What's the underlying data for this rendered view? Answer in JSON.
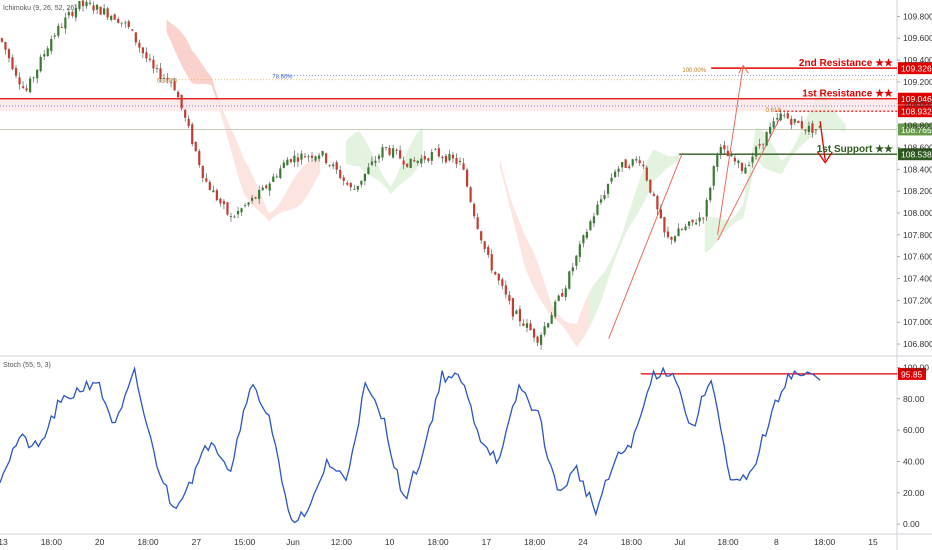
{
  "main_panel": {
    "indicator_label": "Ichimoku (9, 26, 52, 26)",
    "price_axis_ticks": [
      "109.800",
      "109.600",
      "109.400",
      "109.200",
      "109.000",
      "108.800",
      "108.600",
      "108.400",
      "108.200",
      "108.000",
      "107.800",
      "107.600",
      "107.400",
      "107.200",
      "107.000",
      "106.800"
    ],
    "price_tick_values": [
      109.8,
      109.6,
      109.4,
      109.2,
      109.0,
      108.8,
      108.6,
      108.4,
      108.2,
      108.0,
      107.8,
      107.6,
      107.4,
      107.2,
      107.0,
      106.8
    ],
    "levels": {
      "second_resistance": {
        "label": "2nd Resistance ★★",
        "price": "109.326",
        "value": 109.326,
        "color": "#e00000"
      },
      "first_resistance": {
        "label": "1st Resistance ★★",
        "price": "109.046",
        "value": 109.046,
        "color": "#e00000"
      },
      "first_resistance_alt": {
        "price": "108.932",
        "value": 108.932,
        "color": "#e00000"
      },
      "current_price": {
        "price": "108.765",
        "value": 108.765,
        "color": "#6a9c4e"
      },
      "first_support": {
        "label": "1st Support ★★",
        "price": "108.538",
        "value": 108.538,
        "color": "#2f5a1f"
      }
    },
    "fib_labels": {
      "fib_618_left": "61.80%",
      "fib_7860": "78.60%",
      "fib_100": "100.00%",
      "fib_0618": "0.618"
    }
  },
  "stoch_panel": {
    "indicator_label": "Stoch (55, 5, 3)",
    "axis_ticks": [
      "100.00",
      "80.00",
      "60.00",
      "40.00",
      "20.00",
      "0.00"
    ],
    "axis_tick_values": [
      100,
      80,
      60,
      40,
      20,
      0
    ],
    "current_value": {
      "text": "95.85",
      "value": 95.85,
      "color": "#e00000"
    }
  },
  "time_axis": {
    "labels": [
      "13",
      "18:00",
      "20",
      "18:00",
      "27",
      "15:00",
      "Jun",
      "12:00",
      "10",
      "18:00",
      "17",
      "18:00",
      "24",
      "18:00",
      "Jul",
      "18:00",
      "8",
      "18:00",
      "15"
    ]
  },
  "chart_data": {
    "type": "line",
    "title": "",
    "ylim": [
      106.7,
      109.95
    ],
    "stoch_ylim": [
      -5,
      106
    ],
    "grid": false,
    "series": [
      {
        "name": "price",
        "x": [
          0,
          4,
          8,
          12,
          14,
          18,
          20,
          24,
          27,
          32,
          36,
          41,
          45,
          50,
          53,
          55,
          60,
          64,
          68,
          72,
          74,
          76,
          80,
          84,
          88,
          92,
          96,
          100,
          104,
          108,
          110,
          112,
          116,
          120,
          122,
          126,
          130
        ],
        "values": [
          109.6,
          109.1,
          109.6,
          109.9,
          109.9,
          109.8,
          109.7,
          109.3,
          109.2,
          108.3,
          107.95,
          108.2,
          108.5,
          108.55,
          108.35,
          108.2,
          108.6,
          108.45,
          108.55,
          108.45,
          108.0,
          107.6,
          107.1,
          106.85,
          107.3,
          107.9,
          108.4,
          108.5,
          107.75,
          107.9,
          108.0,
          108.6,
          108.4,
          108.75,
          108.9,
          108.77,
          108.77
        ]
      },
      {
        "name": "Stoch",
        "x": [
          0,
          3,
          6,
          9,
          12,
          15,
          18,
          21,
          24,
          27,
          30,
          33,
          36,
          39,
          42,
          45,
          48,
          51,
          54,
          57,
          60,
          63,
          66,
          69,
          72,
          75,
          78,
          81,
          84,
          87,
          90,
          93,
          96,
          99,
          102,
          105,
          108,
          111,
          114,
          117,
          120,
          123,
          126,
          128
        ],
        "values": [
          30,
          55,
          48,
          75,
          85,
          92,
          62,
          96,
          45,
          10,
          30,
          55,
          35,
          90,
          70,
          5,
          5,
          40,
          28,
          88,
          65,
          15,
          45,
          95,
          92,
          55,
          40,
          88,
          70,
          20,
          35,
          8,
          40,
          55,
          96,
          98,
          60,
          95,
          25,
          30,
          65,
          96,
          95,
          92
        ]
      }
    ]
  }
}
